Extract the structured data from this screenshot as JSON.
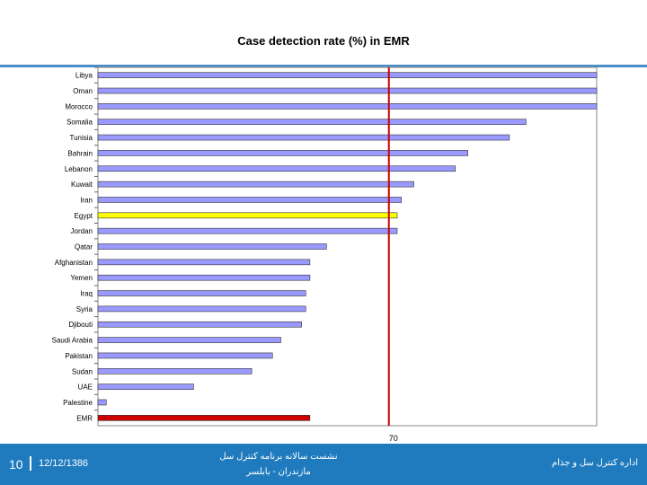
{
  "chart_data": {
    "type": "bar",
    "orientation": "horizontal",
    "title": "Case detection rate (%) in EMR",
    "categories": [
      "Libya",
      "Oman",
      "Morocco",
      "Somalia",
      "Tunisia",
      "Bahrain",
      "Lebanon",
      "Kuwait",
      "Iran",
      "Egypt",
      "Jordan",
      "Qatar",
      "Afghanistan",
      "Yemen",
      "Iraq",
      "Syria",
      "Djibouti",
      "Saudi Arabia",
      "Pakistan",
      "Sudan",
      "UAE",
      "Palestine",
      "EMR"
    ],
    "values": [
      120,
      120,
      120,
      103,
      99,
      89,
      86,
      76,
      73,
      72,
      72,
      55,
      51,
      51,
      50,
      50,
      49,
      44,
      42,
      37,
      23,
      2,
      51
    ],
    "bar_colors": [
      "#9999ff",
      "#9999ff",
      "#9999ff",
      "#9999ff",
      "#9999ff",
      "#9999ff",
      "#9999ff",
      "#9999ff",
      "#9999ff",
      "#ffff00",
      "#9999ff",
      "#9999ff",
      "#9999ff",
      "#9999ff",
      "#9999ff",
      "#9999ff",
      "#9999ff",
      "#9999ff",
      "#9999ff",
      "#9999ff",
      "#9999ff",
      "#9999ff",
      "#cc0000"
    ],
    "xlim": [
      0,
      120
    ],
    "reference_line": {
      "value": 70,
      "label": "70",
      "color": "#cc0000"
    },
    "xlabel": "",
    "ylabel": ""
  },
  "footer": {
    "slide_number": "10",
    "date": "12/12/1386",
    "center_line1": "نشست سالانه برنامه کنترل سل",
    "center_line2": "مازندران - بابلسر",
    "right_text": "اداره کنترل سل و جذام"
  }
}
